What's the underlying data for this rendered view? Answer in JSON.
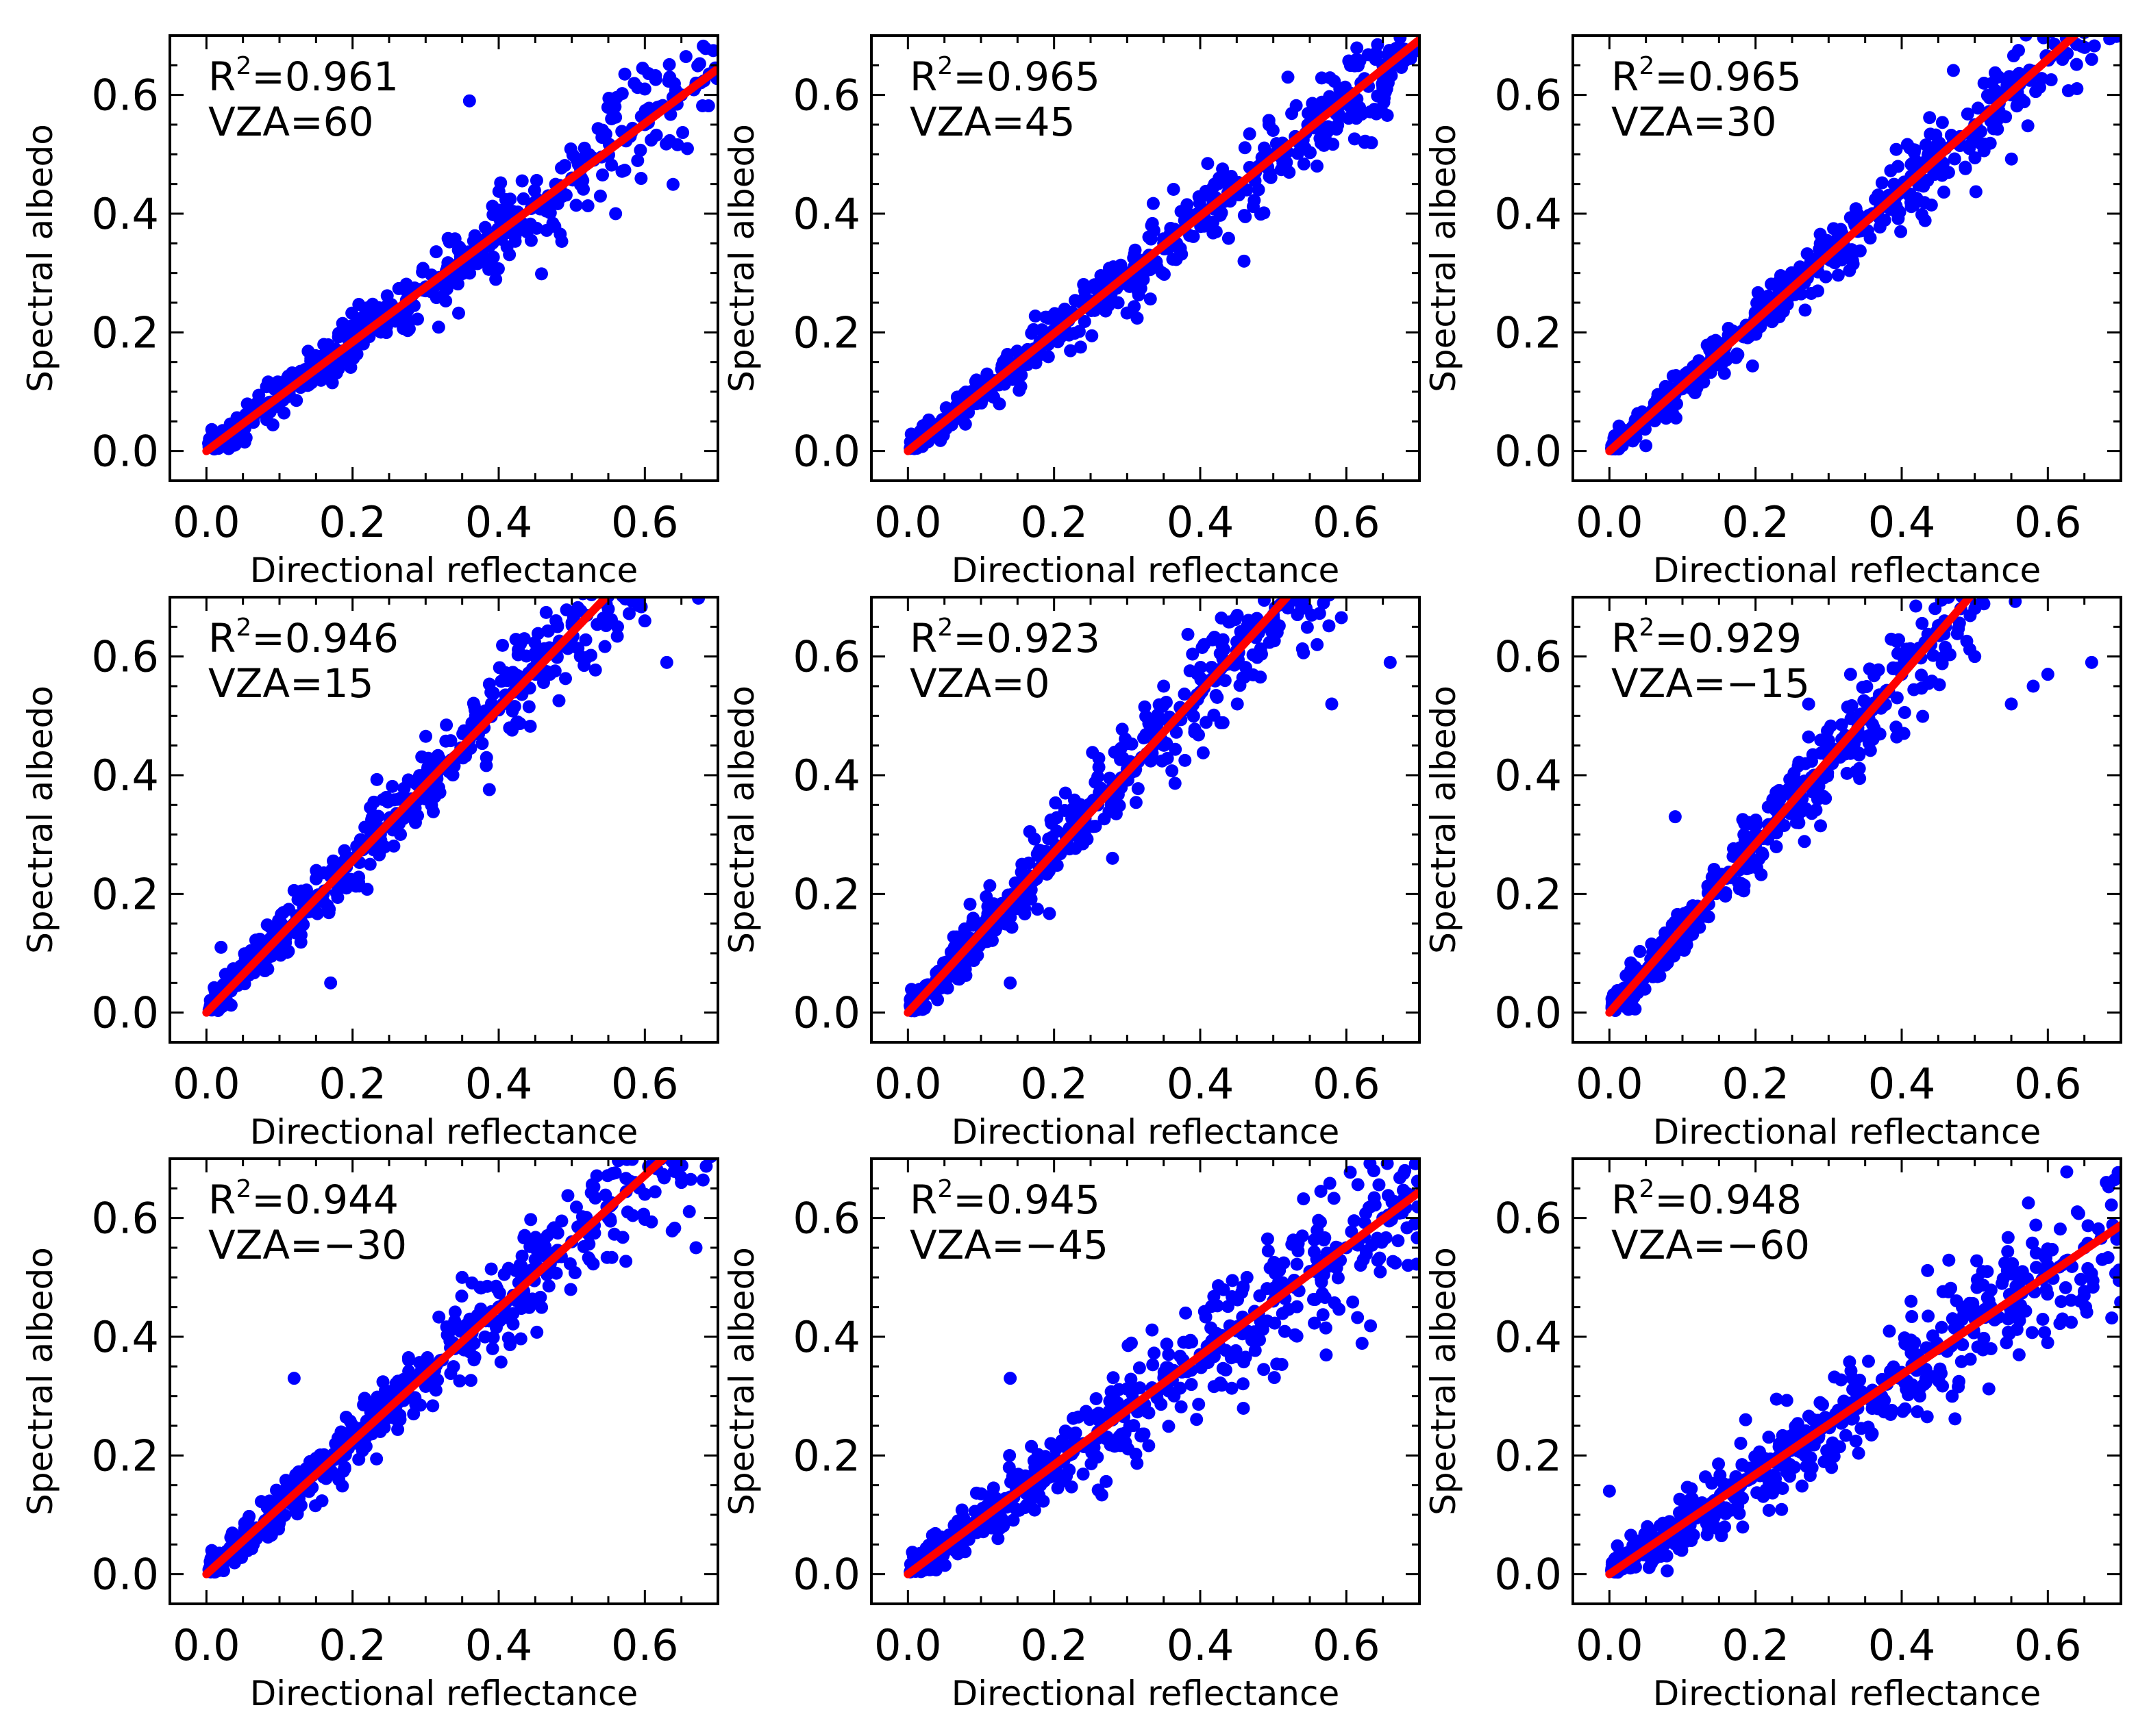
{
  "colors": {
    "points": "#0000ff",
    "fit_line": "#ff0000",
    "axes": "#000000"
  },
  "chart_data": [
    {
      "type": "scatter",
      "xlabel": "Directional reflectance",
      "ylabel": "Spectral albedo",
      "xlim": [
        -0.05,
        0.7
      ],
      "ylim": [
        -0.05,
        0.7
      ],
      "xticks": [
        "0.0",
        "0.2",
        "0.4",
        "0.6"
      ],
      "yticks": [
        "0.0",
        "0.2",
        "0.4",
        "0.6"
      ],
      "r2_symbol": "R",
      "r2_exponent": "2",
      "r2_value": "=0.961",
      "vza_label": "VZA=60",
      "fit": {
        "slope": 0.92,
        "intercept": 0.0
      },
      "spread": 0.025,
      "samples": {
        "x": [
          0.02,
          0.05,
          0.08,
          0.1,
          0.13,
          0.15,
          0.18,
          0.2,
          0.22,
          0.25,
          0.28,
          0.3,
          0.33,
          0.35,
          0.38,
          0.4,
          0.42,
          0.45,
          0.48,
          0.5,
          0.53,
          0.55,
          0.58,
          0.6,
          0.62,
          0.65,
          0.67,
          0.36,
          0.56,
          0.6
        ],
        "y": [
          0.02,
          0.05,
          0.07,
          0.09,
          0.12,
          0.14,
          0.16,
          0.19,
          0.2,
          0.23,
          0.26,
          0.27,
          0.31,
          0.32,
          0.35,
          0.37,
          0.38,
          0.42,
          0.44,
          0.46,
          0.49,
          0.5,
          0.53,
          0.55,
          0.58,
          0.6,
          0.62,
          0.59,
          0.4,
          0.61
        ]
      }
    },
    {
      "type": "scatter",
      "xlabel": "Directional reflectance",
      "ylabel": "Spectral albedo",
      "xlim": [
        -0.05,
        0.7
      ],
      "ylim": [
        -0.05,
        0.7
      ],
      "xticks": [
        "0.0",
        "0.2",
        "0.4",
        "0.6"
      ],
      "yticks": [
        "0.0",
        "0.2",
        "0.4",
        "0.6"
      ],
      "r2_symbol": "R",
      "r2_exponent": "2",
      "r2_value": "=0.965",
      "vza_label": "VZA=45",
      "fit": {
        "slope": 0.99,
        "intercept": 0.0
      },
      "spread": 0.025,
      "samples": {
        "x": [
          0.02,
          0.05,
          0.08,
          0.1,
          0.13,
          0.15,
          0.18,
          0.2,
          0.22,
          0.25,
          0.28,
          0.3,
          0.33,
          0.35,
          0.38,
          0.4,
          0.42,
          0.45,
          0.48,
          0.5,
          0.53,
          0.55,
          0.58,
          0.6,
          0.62,
          0.65,
          0.68,
          0.46,
          0.52,
          0.64
        ],
        "y": [
          0.02,
          0.05,
          0.08,
          0.1,
          0.13,
          0.15,
          0.18,
          0.2,
          0.22,
          0.25,
          0.28,
          0.3,
          0.33,
          0.35,
          0.38,
          0.4,
          0.42,
          0.45,
          0.48,
          0.5,
          0.53,
          0.55,
          0.58,
          0.6,
          0.62,
          0.65,
          0.67,
          0.32,
          0.63,
          0.66
        ]
      }
    },
    {
      "type": "scatter",
      "xlabel": "Directional reflectance",
      "ylabel": "Spectral albedo",
      "xlim": [
        -0.05,
        0.7
      ],
      "ylim": [
        -0.05,
        0.7
      ],
      "xticks": [
        "0.0",
        "0.2",
        "0.4",
        "0.6"
      ],
      "yticks": [
        "0.0",
        "0.2",
        "0.4",
        "0.6"
      ],
      "r2_symbol": "R",
      "r2_exponent": "2",
      "r2_value": "=0.965",
      "vza_label": "VZA=30",
      "fit": {
        "slope": 1.1,
        "intercept": 0.0
      },
      "spread": 0.025,
      "samples": {
        "x": [
          0.02,
          0.04,
          0.06,
          0.08,
          0.1,
          0.12,
          0.14,
          0.16,
          0.18,
          0.2,
          0.22,
          0.24,
          0.26,
          0.28,
          0.3,
          0.32,
          0.34,
          0.36,
          0.38,
          0.4,
          0.42,
          0.44,
          0.46,
          0.48,
          0.5,
          0.52,
          0.55,
          0.58,
          0.62,
          0.66
        ],
        "y": [
          0.02,
          0.04,
          0.07,
          0.09,
          0.11,
          0.13,
          0.16,
          0.18,
          0.2,
          0.22,
          0.24,
          0.26,
          0.29,
          0.31,
          0.33,
          0.35,
          0.37,
          0.4,
          0.42,
          0.44,
          0.46,
          0.48,
          0.51,
          0.53,
          0.55,
          0.57,
          0.6,
          0.64,
          0.66,
          0.66
        ]
      }
    },
    {
      "type": "scatter",
      "xlabel": "Directional reflectance",
      "ylabel": "Spectral albedo",
      "xlim": [
        -0.05,
        0.7
      ],
      "ylim": [
        -0.05,
        0.7
      ],
      "xticks": [
        "0.0",
        "0.2",
        "0.4",
        "0.6"
      ],
      "yticks": [
        "0.0",
        "0.2",
        "0.4",
        "0.6"
      ],
      "r2_symbol": "R",
      "r2_exponent": "2",
      "r2_value": "=0.946",
      "vza_label": "VZA=15",
      "fit": {
        "slope": 1.28,
        "intercept": 0.0
      },
      "spread": 0.03,
      "samples": {
        "x": [
          0.02,
          0.04,
          0.06,
          0.08,
          0.1,
          0.12,
          0.14,
          0.16,
          0.18,
          0.2,
          0.22,
          0.24,
          0.26,
          0.28,
          0.3,
          0.32,
          0.34,
          0.36,
          0.38,
          0.4,
          0.42,
          0.45,
          0.48,
          0.5,
          0.55,
          0.6,
          0.63,
          0.02,
          0.17,
          0.47
        ],
        "y": [
          0.03,
          0.05,
          0.08,
          0.1,
          0.13,
          0.15,
          0.18,
          0.2,
          0.23,
          0.26,
          0.28,
          0.31,
          0.33,
          0.36,
          0.38,
          0.41,
          0.43,
          0.46,
          0.48,
          0.51,
          0.54,
          0.57,
          0.6,
          0.63,
          0.68,
          0.66,
          0.59,
          0.11,
          0.05,
          0.57
        ]
      }
    },
    {
      "type": "scatter",
      "xlabel": "Directional reflectance",
      "ylabel": "Spectral albedo",
      "xlim": [
        -0.05,
        0.7
      ],
      "ylim": [
        -0.05,
        0.7
      ],
      "xticks": [
        "0.0",
        "0.2",
        "0.4",
        "0.6"
      ],
      "yticks": [
        "0.0",
        "0.2",
        "0.4",
        "0.6"
      ],
      "r2_symbol": "R",
      "r2_exponent": "2",
      "r2_value": "=0.923",
      "vza_label": "VZA=0",
      "fit": {
        "slope": 1.35,
        "intercept": 0.0
      },
      "spread": 0.035,
      "samples": {
        "x": [
          0.02,
          0.04,
          0.06,
          0.08,
          0.1,
          0.12,
          0.14,
          0.16,
          0.18,
          0.2,
          0.22,
          0.24,
          0.26,
          0.28,
          0.3,
          0.32,
          0.34,
          0.36,
          0.38,
          0.4,
          0.42,
          0.45,
          0.48,
          0.5,
          0.58,
          0.66,
          0.14,
          0.28,
          0.35,
          0.56
        ],
        "y": [
          0.03,
          0.05,
          0.08,
          0.11,
          0.14,
          0.16,
          0.19,
          0.22,
          0.24,
          0.27,
          0.3,
          0.32,
          0.35,
          0.38,
          0.41,
          0.43,
          0.46,
          0.49,
          0.51,
          0.54,
          0.57,
          0.61,
          0.64,
          0.67,
          0.52,
          0.59,
          0.05,
          0.26,
          0.55,
          0.62
        ]
      }
    },
    {
      "type": "scatter",
      "xlabel": "Directional reflectance",
      "ylabel": "Spectral albedo",
      "xlim": [
        -0.05,
        0.7
      ],
      "ylim": [
        -0.05,
        0.7
      ],
      "xticks": [
        "0.0",
        "0.2",
        "0.4",
        "0.6"
      ],
      "yticks": [
        "0.0",
        "0.2",
        "0.4",
        "0.6"
      ],
      "r2_symbol": "R",
      "r2_exponent": "2",
      "r2_value": "=0.929",
      "vza_label": "VZA=−15",
      "fit": {
        "slope": 1.42,
        "intercept": 0.0
      },
      "spread": 0.035,
      "samples": {
        "x": [
          0.02,
          0.04,
          0.06,
          0.08,
          0.1,
          0.12,
          0.14,
          0.16,
          0.18,
          0.2,
          0.22,
          0.24,
          0.26,
          0.28,
          0.3,
          0.32,
          0.34,
          0.36,
          0.38,
          0.4,
          0.42,
          0.44,
          0.46,
          0.5,
          0.55,
          0.6,
          0.66,
          0.09,
          0.33,
          0.58
        ],
        "y": [
          0.03,
          0.06,
          0.09,
          0.11,
          0.14,
          0.17,
          0.2,
          0.23,
          0.26,
          0.28,
          0.31,
          0.34,
          0.37,
          0.4,
          0.43,
          0.45,
          0.48,
          0.51,
          0.54,
          0.57,
          0.6,
          0.62,
          0.65,
          0.6,
          0.52,
          0.57,
          0.59,
          0.33,
          0.57,
          0.55
        ]
      }
    },
    {
      "type": "scatter",
      "xlabel": "Directional reflectance",
      "ylabel": "Spectral albedo",
      "xlim": [
        -0.05,
        0.7
      ],
      "ylim": [
        -0.05,
        0.7
      ],
      "xticks": [
        "0.0",
        "0.2",
        "0.4",
        "0.6"
      ],
      "yticks": [
        "0.0",
        "0.2",
        "0.4",
        "0.6"
      ],
      "r2_symbol": "R",
      "r2_exponent": "2",
      "r2_value": "=0.944",
      "vza_label": "VZA=−30",
      "fit": {
        "slope": 1.12,
        "intercept": 0.0
      },
      "spread": 0.03,
      "samples": {
        "x": [
          0.02,
          0.04,
          0.06,
          0.08,
          0.1,
          0.12,
          0.14,
          0.16,
          0.18,
          0.2,
          0.22,
          0.24,
          0.26,
          0.28,
          0.3,
          0.32,
          0.34,
          0.36,
          0.38,
          0.4,
          0.42,
          0.45,
          0.48,
          0.5,
          0.55,
          0.6,
          0.65,
          0.12,
          0.35,
          0.67
        ],
        "y": [
          0.02,
          0.05,
          0.07,
          0.09,
          0.11,
          0.14,
          0.16,
          0.18,
          0.2,
          0.23,
          0.25,
          0.27,
          0.29,
          0.32,
          0.34,
          0.36,
          0.38,
          0.41,
          0.43,
          0.45,
          0.47,
          0.51,
          0.54,
          0.56,
          0.6,
          0.64,
          0.66,
          0.33,
          0.5,
          0.55
        ]
      }
    },
    {
      "type": "scatter",
      "xlabel": "Directional reflectance",
      "ylabel": "Spectral albedo",
      "xlim": [
        -0.05,
        0.7
      ],
      "ylim": [
        -0.05,
        0.7
      ],
      "xticks": [
        "0.0",
        "0.2",
        "0.4",
        "0.6"
      ],
      "yticks": [
        "0.0",
        "0.2",
        "0.4",
        "0.6"
      ],
      "r2_symbol": "R",
      "r2_exponent": "2",
      "r2_value": "=0.945",
      "vza_label": "VZA=−45",
      "fit": {
        "slope": 0.92,
        "intercept": 0.0
      },
      "spread": 0.035,
      "samples": {
        "x": [
          0.02,
          0.04,
          0.06,
          0.08,
          0.1,
          0.12,
          0.14,
          0.16,
          0.18,
          0.2,
          0.22,
          0.24,
          0.26,
          0.28,
          0.3,
          0.32,
          0.34,
          0.36,
          0.38,
          0.4,
          0.42,
          0.45,
          0.48,
          0.5,
          0.55,
          0.6,
          0.65,
          0.14,
          0.38,
          0.68
        ],
        "y": [
          0.02,
          0.04,
          0.06,
          0.07,
          0.09,
          0.11,
          0.13,
          0.15,
          0.17,
          0.18,
          0.2,
          0.22,
          0.24,
          0.26,
          0.28,
          0.29,
          0.31,
          0.33,
          0.35,
          0.37,
          0.39,
          0.41,
          0.44,
          0.46,
          0.51,
          0.55,
          0.6,
          0.33,
          0.44,
          0.68
        ]
      }
    },
    {
      "type": "scatter",
      "xlabel": "Directional reflectance",
      "ylabel": "Spectral albedo",
      "xlim": [
        -0.05,
        0.7
      ],
      "ylim": [
        -0.05,
        0.7
      ],
      "xticks": [
        "0.0",
        "0.2",
        "0.4",
        "0.6"
      ],
      "yticks": [
        "0.0",
        "0.2",
        "0.4",
        "0.6"
      ],
      "r2_symbol": "R",
      "r2_exponent": "2",
      "r2_value": "=0.948",
      "vza_label": "VZA=−60",
      "fit": {
        "slope": 0.84,
        "intercept": 0.0
      },
      "spread": 0.035,
      "samples": {
        "x": [
          0.02,
          0.04,
          0.06,
          0.08,
          0.1,
          0.12,
          0.14,
          0.16,
          0.18,
          0.2,
          0.22,
          0.24,
          0.26,
          0.28,
          0.3,
          0.32,
          0.34,
          0.36,
          0.38,
          0.4,
          0.42,
          0.45,
          0.48,
          0.5,
          0.55,
          0.6,
          0.65,
          0.0,
          0.68,
          0.62
        ],
        "y": [
          0.02,
          0.04,
          0.05,
          0.07,
          0.09,
          0.1,
          0.12,
          0.14,
          0.15,
          0.17,
          0.19,
          0.2,
          0.22,
          0.24,
          0.26,
          0.27,
          0.29,
          0.31,
          0.32,
          0.34,
          0.36,
          0.38,
          0.41,
          0.43,
          0.47,
          0.52,
          0.55,
          0.14,
          0.66,
          0.43
        ]
      }
    }
  ]
}
